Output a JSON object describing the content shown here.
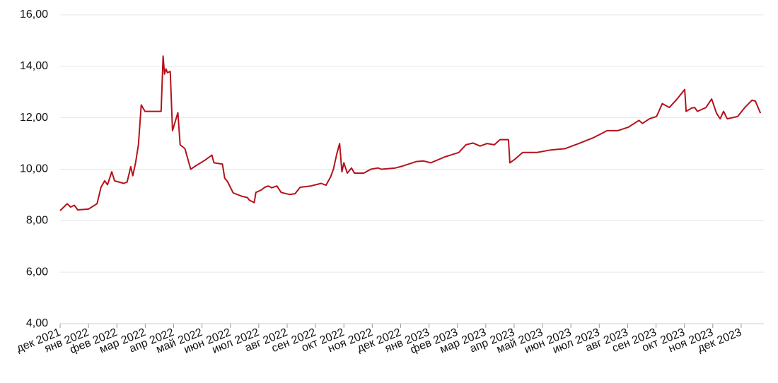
{
  "chart_data": {
    "type": "line",
    "x": [
      0,
      0.25,
      0.37,
      0.5,
      0.62,
      1.0,
      1.3,
      1.44,
      1.57,
      1.67,
      1.82,
      1.92,
      2.24,
      2.36,
      2.49,
      2.56,
      2.66,
      2.76,
      2.86,
      2.99,
      3.56,
      3.63,
      3.68,
      3.73,
      3.78,
      3.88,
      3.96,
      4.15,
      4.23,
      4.4,
      4.6,
      4.73,
      5.1,
      5.35,
      5.42,
      5.72,
      5.8,
      5.9,
      6.1,
      6.4,
      6.6,
      6.67,
      6.84,
      6.9,
      7.1,
      7.21,
      7.34,
      7.46,
      7.64,
      7.79,
      8.08,
      8.28,
      8.46,
      8.83,
      9.2,
      9.37,
      9.53,
      9.63,
      9.75,
      9.85,
      9.93,
      10.0,
      10.12,
      10.27,
      10.37,
      10.7,
      10.95,
      11.2,
      11.32,
      11.82,
      12.06,
      12.56,
      12.81,
      13.06,
      13.56,
      14.05,
      14.3,
      14.55,
      14.8,
      15.05,
      15.3,
      15.5,
      15.8,
      15.85,
      16.04,
      16.3,
      16.8,
      17.29,
      17.79,
      18.28,
      18.78,
      19.28,
      19.65,
      20.02,
      20.4,
      20.52,
      20.77,
      21.02,
      21.22,
      21.47,
      21.72,
      22.01,
      22.06,
      22.26,
      22.36,
      22.46,
      22.76,
      22.96,
      23.13,
      23.26,
      23.38,
      23.51,
      23.88,
      24.13,
      24.38,
      24.5,
      24.68
    ],
    "series": [
      {
        "color": "#b5121b",
        "values": [
          8.39,
          8.66,
          8.53,
          8.6,
          8.42,
          8.45,
          8.66,
          9.3,
          9.55,
          9.4,
          9.9,
          9.55,
          9.45,
          9.5,
          10.1,
          9.75,
          10.25,
          10.95,
          12.5,
          12.25,
          12.25,
          14.4,
          13.7,
          13.9,
          13.75,
          13.8,
          11.5,
          12.2,
          10.95,
          10.8,
          10.0,
          10.1,
          10.35,
          10.55,
          10.25,
          10.2,
          9.65,
          9.52,
          9.08,
          8.95,
          8.9,
          8.8,
          8.7,
          9.1,
          9.2,
          9.3,
          9.35,
          9.28,
          9.35,
          9.1,
          9.02,
          9.05,
          9.3,
          9.35,
          9.45,
          9.38,
          9.7,
          10.0,
          10.6,
          11.0,
          9.9,
          10.25,
          9.85,
          10.05,
          9.85,
          9.85,
          10.0,
          10.05,
          10.0,
          10.05,
          10.12,
          10.3,
          10.32,
          10.25,
          10.48,
          10.65,
          10.95,
          11.02,
          10.9,
          11.0,
          10.95,
          11.15,
          11.15,
          10.25,
          10.4,
          10.65,
          10.65,
          10.75,
          10.8,
          11.0,
          11.22,
          11.5,
          11.5,
          11.63,
          11.9,
          11.78,
          11.96,
          12.05,
          12.55,
          12.4,
          12.7,
          13.1,
          12.25,
          12.38,
          12.4,
          12.25,
          12.4,
          12.73,
          12.18,
          11.96,
          12.25,
          11.96,
          12.05,
          12.4,
          12.68,
          12.65,
          12.18
        ]
      }
    ],
    "xlim": [
      0,
      24.8
    ],
    "xticks": [
      {
        "value": 0,
        "label": "дек 2021"
      },
      {
        "value": 1,
        "label": "янв 2022"
      },
      {
        "value": 2,
        "label": "фев 2022"
      },
      {
        "value": 3,
        "label": "мар 2022"
      },
      {
        "value": 4,
        "label": "апр 2022"
      },
      {
        "value": 5,
        "label": "май 2022"
      },
      {
        "value": 6,
        "label": "июн 2022"
      },
      {
        "value": 7,
        "label": "июл 2022"
      },
      {
        "value": 8,
        "label": "авг 2022"
      },
      {
        "value": 9,
        "label": "сен 2022"
      },
      {
        "value": 10,
        "label": "окт 2022"
      },
      {
        "value": 11,
        "label": "ноя 2022"
      },
      {
        "value": 12,
        "label": "дек 2022"
      },
      {
        "value": 13,
        "label": "янв 2023"
      },
      {
        "value": 14,
        "label": "фев 2023"
      },
      {
        "value": 15,
        "label": "мар 2023"
      },
      {
        "value": 16,
        "label": "апр 2023"
      },
      {
        "value": 17,
        "label": "май 2023"
      },
      {
        "value": 18,
        "label": "июн 2023"
      },
      {
        "value": 19,
        "label": "июл 2023"
      },
      {
        "value": 20,
        "label": "авг 2023"
      },
      {
        "value": 21,
        "label": "сен 2023"
      },
      {
        "value": 22,
        "label": "окт 2023"
      },
      {
        "value": 23,
        "label": "ноя 2023"
      },
      {
        "value": 24,
        "label": "дек 2023"
      }
    ],
    "ylim": [
      4,
      16
    ],
    "yticks": [
      {
        "value": 4,
        "label": "4,00"
      },
      {
        "value": 6,
        "label": "6,00"
      },
      {
        "value": 8,
        "label": "8,00"
      },
      {
        "value": 10,
        "label": "10,00"
      },
      {
        "value": 12,
        "label": "12,00"
      },
      {
        "value": 14,
        "label": "14,00"
      },
      {
        "value": 16,
        "label": "16,00"
      }
    ],
    "grid": true
  }
}
